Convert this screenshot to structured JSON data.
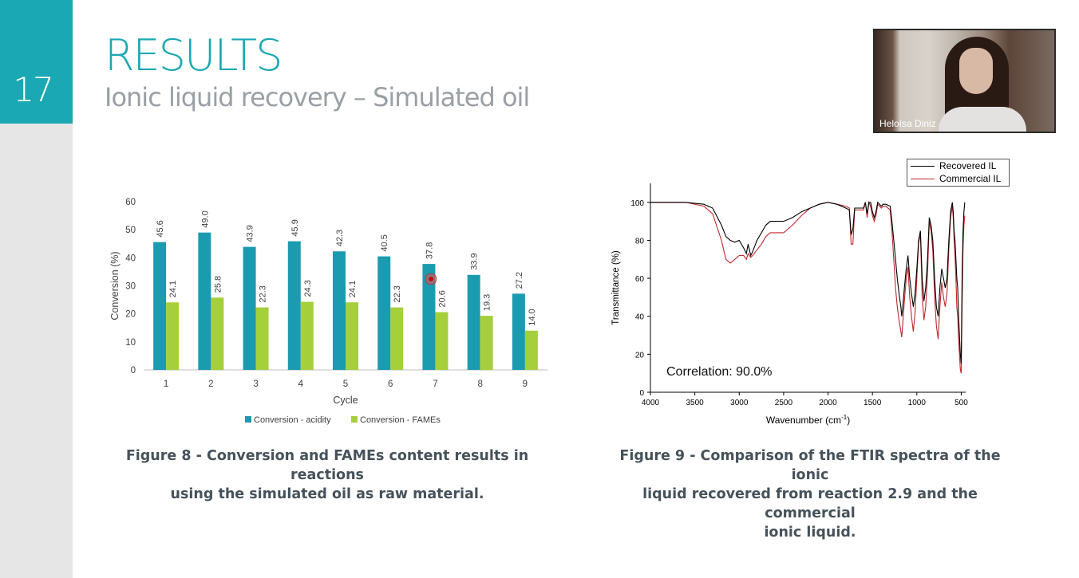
{
  "slide": {
    "number": "17",
    "title": "RESULTS",
    "subtitle": "Ionic liquid recovery – Simulated oil"
  },
  "video": {
    "participant_name": "Heloísa Diniz"
  },
  "figure8": {
    "caption_line1": "Figure 8 - Conversion and FAMEs content results in reactions",
    "caption_line2": "using the simulated oil as raw material."
  },
  "figure9": {
    "caption_line1": "Figure 9 - Comparison of the FTIR spectra of the ionic",
    "caption_line2": "liquid recovered from reaction 2.9 and the commercial",
    "caption_line3": "ionic liquid.",
    "correlation": "Correlation: 90.0%"
  },
  "colors": {
    "accent": "#1aa8b4",
    "acidity_bar": "#1b9bb0",
    "fames_bar": "#a6cf3c",
    "recovered_line": "#000000",
    "commercial_line": "#c0282d"
  },
  "chart_data": [
    {
      "type": "bar",
      "categories": [
        "1",
        "2",
        "3",
        "4",
        "5",
        "6",
        "7",
        "8",
        "9"
      ],
      "series": [
        {
          "name": "Conversion - acidity",
          "values": [
            45.6,
            49.0,
            43.9,
            45.9,
            42.3,
            40.5,
            37.8,
            33.9,
            27.2
          ]
        },
        {
          "name": "Conversion - FAMEs",
          "values": [
            24.1,
            25.8,
            22.3,
            24.3,
            24.1,
            22.3,
            20.6,
            19.3,
            14.0
          ]
        }
      ],
      "title": "",
      "xlabel": "Cycle",
      "ylabel": "Conversion (%)",
      "ylim": [
        0,
        60
      ],
      "yticks": [
        0,
        10,
        20,
        30,
        40,
        50,
        60
      ],
      "legend": "bottom",
      "grid": false
    },
    {
      "type": "line",
      "title": "",
      "xlabel": "Wavenumber (cm",
      "xlabel_sup": "-1",
      "xlabel_end": ")",
      "ylabel": "Transmittance (%)",
      "xlim": [
        4000,
        450
      ],
      "ylim": [
        0,
        110
      ],
      "xticks": [
        4000,
        3500,
        3000,
        2500,
        2000,
        1500,
        1000,
        500
      ],
      "yticks": [
        0,
        20,
        40,
        60,
        80,
        100
      ],
      "legend": "top-right",
      "grid": false,
      "series": [
        {
          "name": "Recovered IL",
          "x": [
            4000,
            3600,
            3400,
            3300,
            3200,
            3150,
            3100,
            3050,
            3000,
            2950,
            2920,
            2900,
            2870,
            2850,
            2800,
            2750,
            2700,
            2650,
            2600,
            2500,
            2400,
            2300,
            2200,
            2100,
            2000,
            1900,
            1800,
            1760,
            1740,
            1720,
            1700,
            1680,
            1650,
            1600,
            1580,
            1560,
            1540,
            1520,
            1500,
            1480,
            1460,
            1440,
            1420,
            1400,
            1380,
            1350,
            1300,
            1280,
            1260,
            1240,
            1220,
            1200,
            1180,
            1170,
            1160,
            1140,
            1120,
            1100,
            1080,
            1060,
            1040,
            1020,
            1000,
            980,
            960,
            940,
            920,
            900,
            880,
            860,
            840,
            820,
            800,
            780,
            760,
            740,
            720,
            700,
            680,
            660,
            640,
            620,
            600,
            590,
            580,
            570,
            560,
            550,
            540,
            530,
            520,
            510,
            500,
            490,
            480,
            470,
            460
          ],
          "y": [
            100,
            100,
            99,
            97,
            88,
            82,
            80,
            79,
            80,
            76,
            73,
            78,
            72,
            74,
            80,
            84,
            88,
            90,
            90,
            90,
            92,
            95,
            97,
            99,
            100,
            99,
            97,
            96,
            83,
            86,
            97,
            97,
            97,
            97,
            100,
            94,
            100,
            100,
            95,
            92,
            95,
            100,
            99,
            98,
            99,
            99,
            98,
            90,
            80,
            70,
            60,
            52,
            45,
            40,
            44,
            55,
            65,
            72,
            60,
            52,
            45,
            52,
            65,
            80,
            85,
            60,
            48,
            55,
            70,
            92,
            88,
            80,
            60,
            45,
            40,
            55,
            65,
            60,
            55,
            60,
            80,
            95,
            100,
            95,
            85,
            80,
            70,
            60,
            55,
            40,
            30,
            20,
            15,
            60,
            85,
            95,
            100
          ]
        },
        {
          "name": "Commercial IL",
          "x": [
            4000,
            3600,
            3400,
            3300,
            3200,
            3150,
            3100,
            3050,
            3000,
            2950,
            2920,
            2900,
            2870,
            2850,
            2800,
            2750,
            2700,
            2650,
            2600,
            2500,
            2400,
            2300,
            2200,
            2100,
            2000,
            1900,
            1800,
            1760,
            1740,
            1720,
            1700,
            1680,
            1650,
            1600,
            1580,
            1560,
            1540,
            1520,
            1500,
            1480,
            1460,
            1440,
            1420,
            1400,
            1380,
            1350,
            1300,
            1280,
            1260,
            1240,
            1220,
            1200,
            1180,
            1170,
            1160,
            1140,
            1120,
            1100,
            1080,
            1060,
            1040,
            1020,
            1000,
            980,
            960,
            940,
            920,
            900,
            880,
            860,
            840,
            820,
            800,
            780,
            760,
            740,
            720,
            700,
            680,
            660,
            640,
            620,
            600,
            590,
            580,
            570,
            560,
            550,
            540,
            530,
            520,
            510,
            500,
            490,
            480,
            470,
            460
          ],
          "y": [
            100,
            100,
            98,
            94,
            80,
            70,
            68,
            70,
            72,
            72,
            70,
            73,
            71,
            72,
            75,
            78,
            82,
            84,
            84,
            84,
            88,
            93,
            97,
            99,
            100,
            99,
            98,
            97,
            78,
            78,
            96,
            96,
            96,
            96,
            100,
            92,
            100,
            98,
            93,
            90,
            93,
            99,
            98,
            97,
            98,
            98,
            96,
            85,
            70,
            55,
            45,
            38,
            32,
            29,
            35,
            48,
            60,
            66,
            50,
            40,
            32,
            42,
            60,
            78,
            84,
            50,
            38,
            45,
            62,
            90,
            85,
            75,
            50,
            35,
            28,
            45,
            58,
            50,
            45,
            52,
            75,
            92,
            98,
            92,
            80,
            72,
            60,
            45,
            40,
            28,
            20,
            12,
            10,
            45,
            75,
            88,
            93
          ]
        }
      ]
    }
  ]
}
